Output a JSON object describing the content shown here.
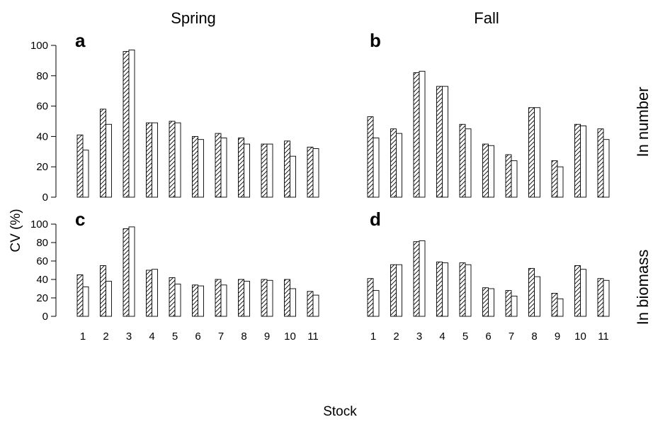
{
  "figure": {
    "column_titles": [
      "Spring",
      "Fall"
    ],
    "row_titles": [
      "In number",
      "In biomass"
    ],
    "ylabel": "CV (%)",
    "xlabel": "Stock"
  },
  "chart_data": [
    {
      "panel": "a",
      "column": "Spring",
      "row": "In number",
      "type": "bar",
      "categories": [
        "1",
        "2",
        "3",
        "4",
        "5",
        "6",
        "7",
        "8",
        "9",
        "10",
        "11"
      ],
      "series": [
        {
          "pattern": "hatched",
          "values": [
            41,
            58,
            96,
            49,
            50,
            40,
            42,
            39,
            35,
            37,
            33
          ]
        },
        {
          "pattern": "open",
          "values": [
            31,
            48,
            97,
            49,
            49,
            38,
            39,
            35,
            35,
            27,
            32
          ]
        }
      ],
      "ylim": [
        0,
        100
      ],
      "yticks": [
        0,
        20,
        40,
        60,
        80,
        100
      ]
    },
    {
      "panel": "b",
      "column": "Fall",
      "row": "In number",
      "type": "bar",
      "categories": [
        "1",
        "2",
        "3",
        "4",
        "5",
        "6",
        "7",
        "8",
        "9",
        "10",
        "11"
      ],
      "series": [
        {
          "pattern": "hatched",
          "values": [
            53,
            45,
            82,
            73,
            48,
            35,
            28,
            59,
            24,
            48,
            45
          ]
        },
        {
          "pattern": "open",
          "values": [
            39,
            42,
            83,
            73,
            45,
            34,
            24,
            59,
            20,
            47,
            38
          ]
        }
      ],
      "ylim": [
        0,
        100
      ],
      "yticks": [
        0,
        20,
        40,
        60,
        80,
        100
      ]
    },
    {
      "panel": "c",
      "column": "Spring",
      "row": "In biomass",
      "type": "bar",
      "categories": [
        "1",
        "2",
        "3",
        "4",
        "5",
        "6",
        "7",
        "8",
        "9",
        "10",
        "11"
      ],
      "series": [
        {
          "pattern": "hatched",
          "values": [
            45,
            55,
            95,
            50,
            42,
            34,
            40,
            40,
            40,
            40,
            27
          ]
        },
        {
          "pattern": "open",
          "values": [
            32,
            38,
            97,
            51,
            35,
            33,
            34,
            38,
            39,
            30,
            23
          ]
        }
      ],
      "ylim": [
        0,
        100
      ],
      "yticks": [
        0,
        20,
        40,
        60,
        80,
        100
      ]
    },
    {
      "panel": "d",
      "column": "Fall",
      "row": "In biomass",
      "type": "bar",
      "categories": [
        "1",
        "2",
        "3",
        "4",
        "5",
        "6",
        "7",
        "8",
        "9",
        "10",
        "11"
      ],
      "series": [
        {
          "pattern": "hatched",
          "values": [
            41,
            56,
            81,
            59,
            58,
            31,
            28,
            52,
            25,
            55,
            41
          ]
        },
        {
          "pattern": "open",
          "values": [
            28,
            56,
            82,
            58,
            56,
            30,
            22,
            43,
            19,
            51,
            39
          ]
        }
      ],
      "ylim": [
        0,
        100
      ],
      "yticks": [
        0,
        20,
        40,
        60,
        80,
        100
      ]
    }
  ]
}
